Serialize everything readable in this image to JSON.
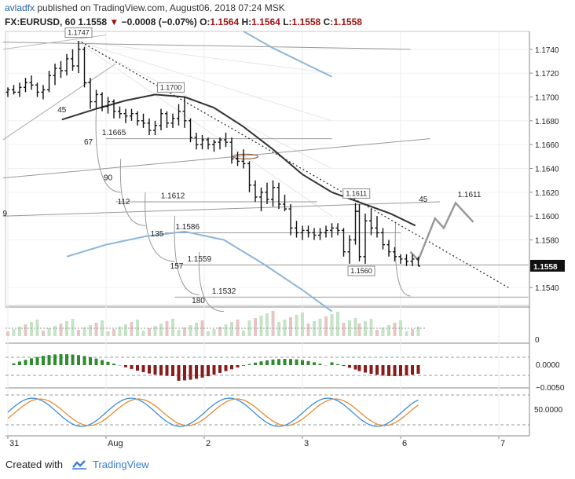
{
  "header": {
    "username": "avladfx",
    "published": "published on TradingView.com, August06, 2018 07:24 MSK",
    "symbol": "FX:EURUSD, 60",
    "price": "1.1558",
    "change_arrow": "▼",
    "change": "−0.0008 (−0.07%)",
    "o_label": "O:",
    "o": "1.1564",
    "h_label": "H:",
    "h": "1.1564",
    "l_label": "L:",
    "l": "1.1558",
    "c_label": "C:",
    "c": "1.1558"
  },
  "footer": {
    "created_with": "Created with",
    "brand": "TradingView"
  },
  "chart_data": {
    "type": "candlestick",
    "price_axis": {
      "min": 1.1525,
      "max": 1.1755,
      "ticks": [
        "1.1740",
        "1.1720",
        "1.1700",
        "1.1680",
        "1.1660",
        "1.1640",
        "1.1620",
        "1.1600",
        "1.1580",
        "1.1540"
      ]
    },
    "last_price": "1.1558",
    "time_axis": {
      "labels": [
        "31",
        "Aug",
        "2",
        "3",
        "6",
        "7"
      ],
      "positions": [
        0,
        1,
        2,
        3,
        4,
        5
      ]
    },
    "price_labels": [
      "1.1747",
      "1.1700",
      "1.1665",
      "1.1612",
      "1.1586",
      "1.1559",
      "1.1532",
      "1.1611",
      "1.1560",
      "1.1611"
    ],
    "time_counts": [
      "45",
      "67",
      "90",
      "112",
      "135",
      "157",
      "180",
      "9",
      "45"
    ],
    "oscillator_levels": {
      "macd": [
        "0.0000",
        "−0.0050"
      ],
      "stoch": [
        "50.0000"
      ],
      "volume": [
        "0"
      ]
    },
    "candles": [
      [
        0.0,
        1.1704,
        1.1708,
        1.17,
        1.1706
      ],
      [
        0.06,
        1.1706,
        1.171,
        1.1702,
        1.1704
      ],
      [
        0.12,
        1.1704,
        1.1712,
        1.17,
        1.1708
      ],
      [
        0.18,
        1.1708,
        1.1716,
        1.1704,
        1.1712
      ],
      [
        0.24,
        1.1712,
        1.1718,
        1.1706,
        1.171
      ],
      [
        0.3,
        1.171,
        1.1712,
        1.17,
        1.1704
      ],
      [
        0.36,
        1.1704,
        1.171,
        1.1698,
        1.1706
      ],
      [
        0.42,
        1.1706,
        1.1722,
        1.1704,
        1.1718
      ],
      [
        0.48,
        1.1718,
        1.1728,
        1.171,
        1.1724
      ],
      [
        0.54,
        1.1724,
        1.173,
        1.1716,
        1.1722
      ],
      [
        0.6,
        1.1722,
        1.1736,
        1.1718,
        1.1732
      ],
      [
        0.66,
        1.1732,
        1.174,
        1.1722,
        1.1726
      ],
      [
        0.72,
        1.1726,
        1.1747,
        1.172,
        1.174
      ],
      [
        0.78,
        1.174,
        1.1742,
        1.1708,
        1.1712
      ],
      [
        0.84,
        1.1712,
        1.1716,
        1.169,
        1.1696
      ],
      [
        0.9,
        1.1696,
        1.1706,
        1.169,
        1.1702
      ],
      [
        0.96,
        1.1702,
        1.1704,
        1.1688,
        1.1692
      ],
      [
        1.02,
        1.1692,
        1.17,
        1.1686,
        1.1696
      ],
      [
        1.08,
        1.1696,
        1.1698,
        1.1682,
        1.1688
      ],
      [
        1.14,
        1.1688,
        1.1692,
        1.1682,
        1.1686
      ],
      [
        1.2,
        1.1686,
        1.169,
        1.1678,
        1.1684
      ],
      [
        1.26,
        1.1684,
        1.169,
        1.168,
        1.1686
      ],
      [
        1.32,
        1.1686,
        1.1688,
        1.1676,
        1.168
      ],
      [
        1.38,
        1.168,
        1.1686,
        1.1674,
        1.1678
      ],
      [
        1.44,
        1.1678,
        1.1682,
        1.1668,
        1.1672
      ],
      [
        1.5,
        1.1672,
        1.168,
        1.1668,
        1.1676
      ],
      [
        1.56,
        1.1676,
        1.169,
        1.1672,
        1.1686
      ],
      [
        1.62,
        1.1686,
        1.1688,
        1.1674,
        1.1678
      ],
      [
        1.68,
        1.1678,
        1.1686,
        1.1674,
        1.1682
      ],
      [
        1.74,
        1.1682,
        1.1694,
        1.1676,
        1.1688
      ],
      [
        1.8,
        1.1688,
        1.17,
        1.1674,
        1.168
      ],
      [
        1.86,
        1.168,
        1.1682,
        1.1662,
        1.1666
      ],
      [
        1.92,
        1.1666,
        1.167,
        1.1656,
        1.166
      ],
      [
        1.98,
        1.166,
        1.1668,
        1.1656,
        1.1664
      ],
      [
        2.04,
        1.1664,
        1.1666,
        1.1656,
        1.166
      ],
      [
        2.1,
        1.166,
        1.1664,
        1.1654,
        1.1662
      ],
      [
        2.16,
        1.1662,
        1.1666,
        1.1656,
        1.1664
      ],
      [
        2.22,
        1.1664,
        1.167,
        1.1658,
        1.1662
      ],
      [
        2.28,
        1.1662,
        1.1666,
        1.1644,
        1.1648
      ],
      [
        2.34,
        1.1648,
        1.1654,
        1.1642,
        1.1646
      ],
      [
        2.4,
        1.1646,
        1.1656,
        1.164,
        1.1644
      ],
      [
        2.46,
        1.1644,
        1.1646,
        1.162,
        1.1626
      ],
      [
        2.52,
        1.1626,
        1.163,
        1.1612,
        1.1616
      ],
      [
        2.58,
        1.1616,
        1.1624,
        1.1604,
        1.162
      ],
      [
        2.64,
        1.162,
        1.1628,
        1.161,
        1.1614
      ],
      [
        2.7,
        1.1614,
        1.163,
        1.1608,
        1.1624
      ],
      [
        2.76,
        1.1624,
        1.1628,
        1.1606,
        1.161
      ],
      [
        2.82,
        1.161,
        1.1618,
        1.1604,
        1.1606
      ],
      [
        2.88,
        1.1606,
        1.161,
        1.1584,
        1.159
      ],
      [
        2.94,
        1.159,
        1.1596,
        1.1582,
        1.1586
      ],
      [
        3.0,
        1.1586,
        1.1592,
        1.158,
        1.1588
      ],
      [
        3.06,
        1.1588,
        1.1592,
        1.1582,
        1.1586
      ],
      [
        3.12,
        1.1586,
        1.159,
        1.158,
        1.1584
      ],
      [
        3.18,
        1.1584,
        1.159,
        1.158,
        1.1586
      ],
      [
        3.24,
        1.1586,
        1.1592,
        1.1582,
        1.1588
      ],
      [
        3.3,
        1.1588,
        1.1594,
        1.1582,
        1.159
      ],
      [
        3.36,
        1.159,
        1.1594,
        1.1584,
        1.1588
      ],
      [
        3.42,
        1.1588,
        1.159,
        1.1566,
        1.157
      ],
      [
        3.48,
        1.157,
        1.1584,
        1.156,
        1.158
      ],
      [
        3.54,
        1.158,
        1.1611,
        1.1576,
        1.1604
      ],
      [
        3.58,
        1.1604,
        1.161,
        1.1562,
        1.1566
      ],
      [
        3.64,
        1.1566,
        1.1602,
        1.156,
        1.1596
      ],
      [
        3.7,
        1.1596,
        1.1606,
        1.1584,
        1.159
      ],
      [
        3.76,
        1.159,
        1.16,
        1.1582,
        1.1586
      ],
      [
        3.82,
        1.1586,
        1.159,
        1.1572,
        1.1576
      ],
      [
        3.88,
        1.1576,
        1.158,
        1.1566,
        1.157
      ],
      [
        3.94,
        1.157,
        1.1574,
        1.1562,
        1.1566
      ],
      [
        4.0,
        1.1566,
        1.1568,
        1.156,
        1.1564
      ],
      [
        4.06,
        1.1564,
        1.1568,
        1.1558,
        1.1562
      ],
      [
        4.12,
        1.1562,
        1.1568,
        1.1558,
        1.1564
      ],
      [
        4.18,
        1.1564,
        1.1566,
        1.1558,
        1.1558
      ]
    ],
    "forecast_path": [
      [
        4.1,
        1.157
      ],
      [
        4.18,
        1.1563
      ],
      [
        4.35,
        1.1598
      ],
      [
        4.44,
        1.159
      ],
      [
        4.56,
        1.1611
      ],
      [
        4.74,
        1.1595
      ]
    ],
    "sma_dark": [
      [
        0.55,
        1.1681
      ],
      [
        0.9,
        1.169
      ],
      [
        1.2,
        1.1697
      ],
      [
        1.5,
        1.1702
      ],
      [
        1.8,
        1.17
      ],
      [
        2.1,
        1.1691
      ],
      [
        2.4,
        1.1675
      ],
      [
        2.7,
        1.1656
      ],
      [
        3.0,
        1.1635
      ],
      [
        3.3,
        1.162
      ],
      [
        3.6,
        1.1611
      ],
      [
        3.9,
        1.1602
      ],
      [
        4.15,
        1.1592
      ]
    ],
    "sma_blue": [
      [
        0.6,
        1.1566
      ],
      [
        1.0,
        1.1576
      ],
      [
        1.4,
        1.1583
      ],
      [
        1.8,
        1.1587
      ],
      [
        2.2,
        1.158
      ],
      [
        2.6,
        1.156
      ],
      [
        3.0,
        1.1538
      ],
      [
        3.3,
        1.152
      ]
    ],
    "sma_blue_top": [
      [
        2.4,
        1.1755
      ],
      [
        2.7,
        1.1741
      ],
      [
        3.0,
        1.1729
      ],
      [
        3.3,
        1.1717
      ]
    ]
  }
}
